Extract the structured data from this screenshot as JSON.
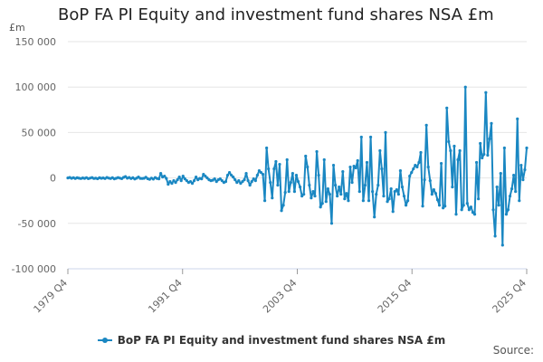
{
  "chart_data": {
    "type": "line",
    "title": "BoP FA PI Equity and investment fund shares NSA £m",
    "unit_label": "£m",
    "ylim": [
      -100000,
      150000
    ],
    "y_ticks": [
      150000,
      100000,
      50000,
      0,
      -50000,
      -100000
    ],
    "y_tick_labels": [
      "150 000",
      "100 000",
      "50 000",
      "0",
      "-50 000",
      "-100 000"
    ],
    "x_ticks": [
      "1979 Q4",
      "1991 Q4",
      "2003 Q4",
      "2015 Q4",
      "2025 Q4"
    ],
    "grid": "horizontal",
    "legend": "bottom-center",
    "series": [
      {
        "name": "BoP FA PI Equity and investment fund shares NSA £m",
        "color": "#1a87c2",
        "x_start": "1979 Q4",
        "x_end": "2025 Q4",
        "values": [
          0,
          500,
          -400,
          300,
          -600,
          200,
          -300,
          -700,
          0,
          -500,
          300,
          -800,
          -200,
          400,
          -600,
          -300,
          -900,
          200,
          -400,
          0,
          -700,
          500,
          -200,
          -600,
          300,
          -1000,
          -400,
          400,
          -200,
          -800,
          600,
          1500,
          -300,
          500,
          -700,
          200,
          -1200,
          -300,
          1000,
          -500,
          -600,
          -400,
          800,
          -900,
          -1500,
          -200,
          -1300,
          400,
          -600,
          -1000,
          5000,
          1000,
          2000,
          -500,
          -7000,
          -4000,
          -6000,
          -3000,
          -5000,
          -2000,
          1000,
          -3000,
          2000,
          -1000,
          -3000,
          -5000,
          -4000,
          -6000,
          -3000,
          1000,
          -2000,
          -500,
          -1000,
          4000,
          2000,
          0,
          -2000,
          -3000,
          -2500,
          -1000,
          -4000,
          -2000,
          -1000,
          -3000,
          -5000,
          -4000,
          3000,
          6000,
          3000,
          1000,
          -2000,
          -5000,
          -3000,
          -6000,
          -4000,
          -2000,
          5000,
          -3000,
          -8000,
          -4000,
          -1000,
          -3000,
          3000,
          8000,
          6000,
          4000,
          -25000,
          33000,
          10000,
          -5000,
          -22000,
          10000,
          18000,
          -8000,
          15000,
          -36000,
          -30000,
          -16000,
          20000,
          -15000,
          -5000,
          5000,
          -15000,
          3000,
          -4000,
          -10000,
          -20000,
          -18000,
          24000,
          12000,
          -8000,
          -22000,
          -15000,
          -20000,
          29000,
          3000,
          -32000,
          -28000,
          20000,
          -26000,
          -12000,
          -18000,
          -50000,
          14000,
          -8000,
          -20000,
          -10000,
          -18000,
          7000,
          -23000,
          -17000,
          -25000,
          12000,
          -5000,
          13000,
          11000,
          19000,
          -15000,
          45000,
          -25000,
          -8000,
          17000,
          -25000,
          45000,
          -15000,
          -43000,
          -18000,
          -8000,
          30000,
          10000,
          -20000,
          50000,
          -26000,
          -23000,
          -12000,
          -37000,
          -15000,
          -13000,
          -18000,
          8000,
          -10000,
          -20000,
          -30000,
          -25000,
          2000,
          6000,
          10000,
          14000,
          12000,
          17000,
          28000,
          -31000,
          -2000,
          58000,
          12000,
          -3000,
          -18000,
          -13000,
          -17000,
          -24000,
          -30000,
          16000,
          -33000,
          -31000,
          77000,
          40000,
          30000,
          -10000,
          35000,
          -40000,
          20000,
          30000,
          -35000,
          -30000,
          100000,
          -28000,
          -35000,
          -32000,
          -38000,
          -40000,
          17000,
          -23000,
          38000,
          22000,
          26000,
          94000,
          25000,
          43000,
          60000,
          -35000,
          -64000,
          -10000,
          -30000,
          5000,
          -74000,
          33000,
          -40000,
          -35000,
          -20000,
          -12000,
          3000,
          -15000,
          65000,
          -25000,
          14000,
          -2000,
          9000,
          33000
        ]
      }
    ]
  },
  "footer": {
    "source_label": "Source:"
  }
}
